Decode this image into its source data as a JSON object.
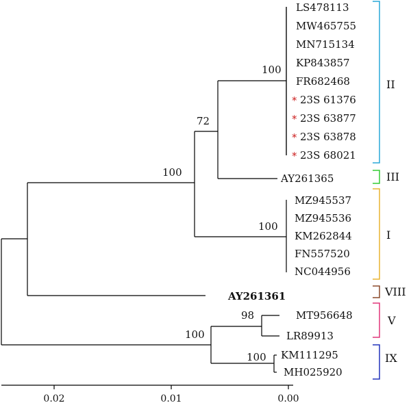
{
  "tree": {
    "leaves": [
      {
        "id": "LS478113",
        "label": "LS478113"
      },
      {
        "id": "MW465755",
        "label": "MW465755"
      },
      {
        "id": "MN715134",
        "label": "MN715134"
      },
      {
        "id": "KP843857",
        "label": "KP843857"
      },
      {
        "id": "FR682468",
        "label": "FR682468"
      },
      {
        "id": "23S61376",
        "label": "23S 61376",
        "marked": true
      },
      {
        "id": "23S63877",
        "label": "23S 63877",
        "marked": true
      },
      {
        "id": "23S63878",
        "label": "23S 63878",
        "marked": true
      },
      {
        "id": "23S68021",
        "label": "23S 68021",
        "marked": true
      },
      {
        "id": "AY261365",
        "label": "AY261365"
      },
      {
        "id": "MZ945537",
        "label": "MZ945537"
      },
      {
        "id": "MZ945536",
        "label": "MZ945536"
      },
      {
        "id": "KM262844",
        "label": "KM262844"
      },
      {
        "id": "FN557520",
        "label": "FN557520"
      },
      {
        "id": "NC044956",
        "label": "NC044956"
      },
      {
        "id": "AY261361",
        "label": "AY261361",
        "bold": true
      },
      {
        "id": "MT956648",
        "label": "MT956648"
      },
      {
        "id": "LR89913",
        "label": "LR89913"
      },
      {
        "id": "KM111295",
        "label": "KM111295"
      },
      {
        "id": "MH025920",
        "label": "MH025920"
      }
    ],
    "marker_symbol": "*",
    "marker_color": "#cc1f1f",
    "bootstrap": [
      "100",
      "72",
      "100",
      "100",
      "98",
      "100",
      "100"
    ],
    "clades": [
      {
        "label": "II",
        "color": "#29a9d9"
      },
      {
        "label": "III",
        "color": "#33cc33"
      },
      {
        "label": "I",
        "color": "#e8b431"
      },
      {
        "label": "VIII",
        "color": "#8b4a2b"
      },
      {
        "label": "V",
        "color": "#e0367a"
      },
      {
        "label": "IX",
        "color": "#2233bb"
      }
    ],
    "scale_ticks": [
      "0.02",
      "0.01",
      "0.00"
    ],
    "scale_tick_values": [
      0.02,
      0.01,
      0.0
    ]
  }
}
